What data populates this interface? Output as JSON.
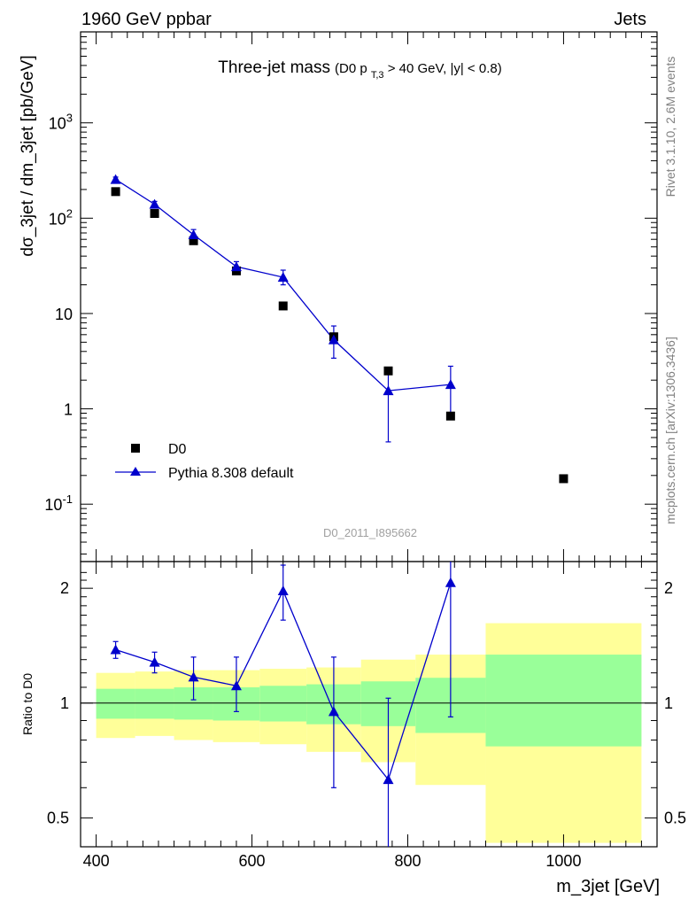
{
  "header": {
    "left": "1960 GeV ppbar",
    "right": "Jets"
  },
  "side_labels": {
    "rivet": "Rivet 3.1.10,  2.6M events",
    "mcplots": "mcplots.cern.ch [arXiv:1306.3436]"
  },
  "watermark": "D0_2011_I895662",
  "chart_data": [
    {
      "type": "scatter",
      "title": "Three-jet mass",
      "subtitle": {
        "prefix": "(D0 p",
        "subscript": "T,3",
        "suffix": " > 40 GeV, |y| < 0.8)"
      },
      "xlabel": "m_3jet [GeV]",
      "ylabel": "dσ_3jet / dm_3jet [pb/GeV]",
      "xlim": [
        380,
        1120
      ],
      "ylim": [
        0.025,
        9000
      ],
      "yscale": "log",
      "ytick_labels": [
        "10^-1",
        "1",
        "10",
        "10^2",
        "10^3"
      ],
      "legend_position": "bottom-left",
      "series": [
        {
          "name": "D0",
          "marker": "square",
          "color": "#000000",
          "points": [
            {
              "x": 425,
              "y": 190
            },
            {
              "x": 475,
              "y": 112
            },
            {
              "x": 525,
              "y": 58
            },
            {
              "x": 580,
              "y": 28
            },
            {
              "x": 640,
              "y": 12
            },
            {
              "x": 705,
              "y": 5.7
            },
            {
              "x": 775,
              "y": 2.5
            },
            {
              "x": 855,
              "y": 0.84
            },
            {
              "x": 1000,
              "y": 0.185
            }
          ]
        },
        {
          "name": "Pythia 8.308 default",
          "marker": "triangle",
          "color": "#0000cc",
          "points": [
            {
              "x": 425,
              "y": 255,
              "lo": 240,
              "hi": 270
            },
            {
              "x": 475,
              "y": 140,
              "lo": 130,
              "hi": 150
            },
            {
              "x": 525,
              "y": 67,
              "lo": 59,
              "hi": 76
            },
            {
              "x": 580,
              "y": 31,
              "lo": 27,
              "hi": 35
            },
            {
              "x": 640,
              "y": 24,
              "lo": 20,
              "hi": 28.5
            },
            {
              "x": 705,
              "y": 5.3,
              "lo": 3.4,
              "hi": 7.4
            },
            {
              "x": 775,
              "y": 1.55,
              "lo": 0.45,
              "hi": 2.6
            },
            {
              "x": 855,
              "y": 1.8,
              "lo": 0.8,
              "hi": 2.8
            }
          ]
        }
      ]
    },
    {
      "type": "line",
      "ylabel": "Ratio to D0",
      "xlim": [
        380,
        1120
      ],
      "ylim": [
        0.42,
        2.35
      ],
      "yscale": "log",
      "xticks": [
        400,
        600,
        800,
        1000
      ],
      "yticks": [
        0.5,
        1,
        2
      ],
      "reference_line": 1,
      "bands": [
        {
          "x0": 400,
          "x1": 450,
          "inner": [
            0.91,
            1.09
          ],
          "outer": [
            0.81,
            1.2
          ]
        },
        {
          "x0": 450,
          "x1": 500,
          "inner": [
            0.91,
            1.09
          ],
          "outer": [
            0.82,
            1.21
          ]
        },
        {
          "x0": 500,
          "x1": 550,
          "inner": [
            0.905,
            1.1
          ],
          "outer": [
            0.8,
            1.22
          ]
        },
        {
          "x0": 550,
          "x1": 610,
          "inner": [
            0.9,
            1.1
          ],
          "outer": [
            0.79,
            1.22
          ]
        },
        {
          "x0": 610,
          "x1": 670,
          "inner": [
            0.895,
            1.11
          ],
          "outer": [
            0.78,
            1.23
          ]
        },
        {
          "x0": 670,
          "x1": 740,
          "inner": [
            0.88,
            1.12
          ],
          "outer": [
            0.745,
            1.24
          ]
        },
        {
          "x0": 740,
          "x1": 810,
          "inner": [
            0.87,
            1.14
          ],
          "outer": [
            0.7,
            1.3
          ]
        },
        {
          "x0": 810,
          "x1": 900,
          "inner": [
            0.835,
            1.165
          ],
          "outer": [
            0.61,
            1.34
          ]
        },
        {
          "x0": 900,
          "x1": 1100,
          "inner": [
            0.77,
            1.34
          ],
          "outer": [
            0.43,
            1.62
          ]
        }
      ],
      "series": [
        {
          "name": "Pythia 8.308 default",
          "color": "#0000cc",
          "points": [
            {
              "x": 425,
              "y": 1.38,
              "lo": 1.31,
              "hi": 1.45
            },
            {
              "x": 475,
              "y": 1.28,
              "lo": 1.2,
              "hi": 1.36
            },
            {
              "x": 525,
              "y": 1.17,
              "lo": 1.02,
              "hi": 1.32
            },
            {
              "x": 580,
              "y": 1.11,
              "lo": 0.95,
              "hi": 1.32
            },
            {
              "x": 640,
              "y": 1.97,
              "lo": 1.65,
              "hi": 2.3
            },
            {
              "x": 705,
              "y": 0.95,
              "lo": 0.6,
              "hi": 1.32
            },
            {
              "x": 775,
              "y": 0.63,
              "lo": 0.3,
              "hi": 1.03
            },
            {
              "x": 855,
              "y": 2.07,
              "lo": 0.92,
              "hi": 3.2
            }
          ]
        }
      ]
    }
  ]
}
